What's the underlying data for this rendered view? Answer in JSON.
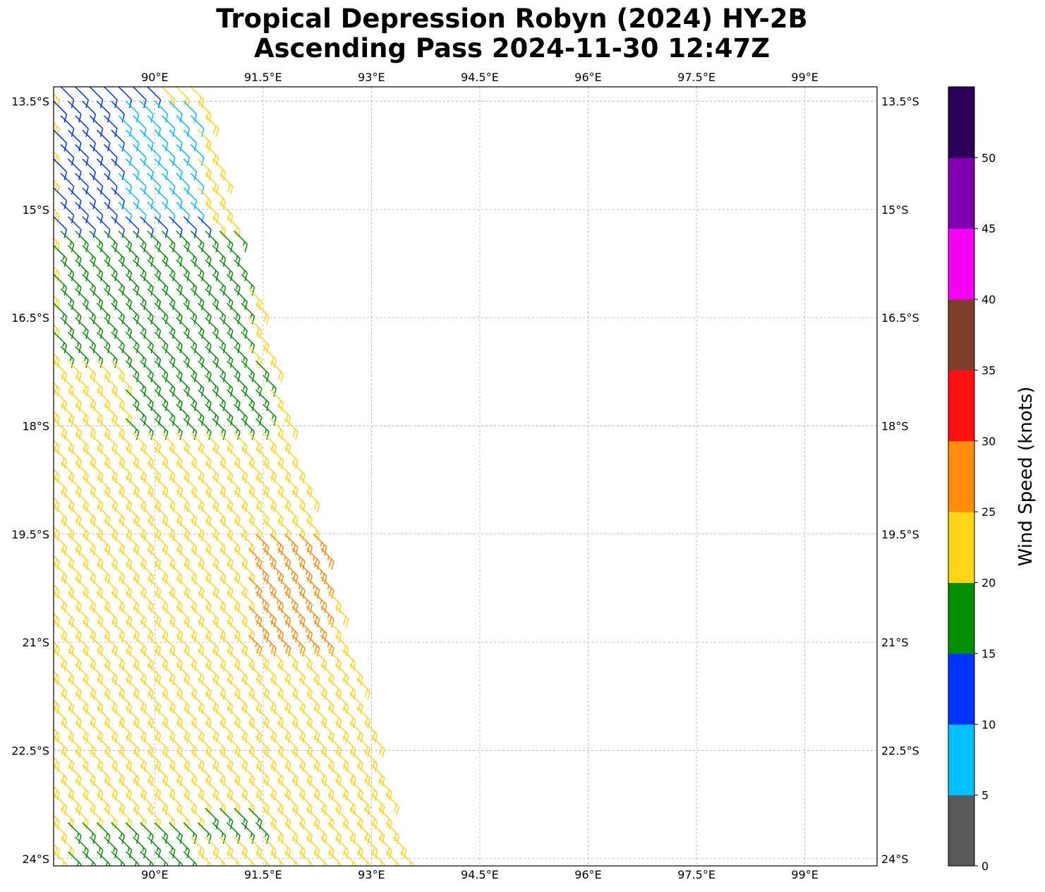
{
  "title": {
    "line1": "Tropical Depression Robyn (2024) HY-2B",
    "line2": "Ascending Pass 2024-11-30 12:47Z"
  },
  "colors": {
    "grid": "#b0b0b0",
    "wind_bins": [
      "#595959",
      "#00bfff",
      "#0033ff",
      "#008f00",
      "#ffd515",
      "#ff8c0a",
      "#ff0f0f",
      "#7f3f2a",
      "#f500f5",
      "#8000b0",
      "#2d0057"
    ]
  },
  "chart_data": {
    "type": "wind-barb-map",
    "xlim": [
      88.6,
      100.0
    ],
    "ylim": [
      -24.1,
      -13.3
    ],
    "x_ticks": [
      90.0,
      91.5,
      93.0,
      94.5,
      96.0,
      97.5,
      99.0
    ],
    "x_tick_labels": [
      "90°E",
      "91.5°E",
      "93°E",
      "94.5°E",
      "96°E",
      "97.5°E",
      "99°E"
    ],
    "y_ticks": [
      -13.5,
      -15.0,
      -16.5,
      -18.0,
      -19.5,
      -21.0,
      -22.5,
      -24.0
    ],
    "y_tick_labels": [
      "13.5°S",
      "15°S",
      "16.5°S",
      "18°S",
      "19.5°S",
      "21°S",
      "22.5°S",
      "24°S"
    ],
    "grid": true,
    "colorbar": {
      "label": "Wind Speed (knots)",
      "bounds": [
        0,
        5,
        10,
        15,
        20,
        25,
        30,
        35,
        40,
        45,
        50,
        55
      ],
      "tick_labels": [
        "0",
        "5",
        "10",
        "15",
        "20",
        "25",
        "30",
        "35",
        "40",
        "45",
        "50"
      ]
    },
    "swath": {
      "ref_lat": -13.5,
      "east_lon_at_ref": 90.65,
      "east_lon_slope_per_deg": 0.27,
      "grid_step_deg": 0.2,
      "wind_direction_from_deg": 135
    },
    "speed_regions": [
      {
        "lat": [
          -15.2,
          -13.3
        ],
        "lon": [
          88.6,
          90.0
        ],
        "speed": 12
      },
      {
        "lat": [
          -15.0,
          -13.5
        ],
        "lon": [
          89.5,
          90.6
        ],
        "speed": 8
      },
      {
        "lat": [
          -16.0,
          -15.0
        ],
        "lon": [
          90.0,
          90.8
        ],
        "speed": 12
      },
      {
        "lat": [
          -17.0,
          -15.2
        ],
        "lon": [
          88.6,
          91.3
        ],
        "speed": 17
      },
      {
        "lat": [
          -18.2,
          -17.0
        ],
        "lon": [
          89.6,
          91.6
        ],
        "speed": 17
      },
      {
        "lat": [
          -18.0,
          -17.0
        ],
        "lon": [
          88.6,
          89.6
        ],
        "speed": 22
      },
      {
        "lat": [
          -21.0,
          -18.0
        ],
        "lon": [
          88.6,
          92.4
        ],
        "speed": 22
      },
      {
        "lat": [
          -21.0,
          -19.4
        ],
        "lon": [
          91.3,
          92.4
        ],
        "speed": 27
      },
      {
        "lat": [
          -24.1,
          -21.0
        ],
        "lon": [
          88.6,
          93.5
        ],
        "speed": 22
      },
      {
        "lat": [
          -24.1,
          -23.3
        ],
        "lon": [
          88.8,
          90.5
        ],
        "speed": 17
      },
      {
        "lat": [
          -23.6,
          -23.2
        ],
        "lon": [
          90.6,
          91.5
        ],
        "speed": 17
      }
    ]
  }
}
